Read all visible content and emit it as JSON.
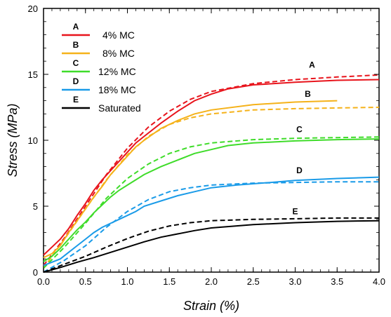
{
  "chart_data": {
    "type": "line",
    "title": "",
    "xlabel": "Strain (%)",
    "ylabel": "Stress (MPa)",
    "xlim": [
      0,
      4
    ],
    "ylim": [
      0,
      20
    ],
    "x_ticks": [
      "0.0",
      "0.5",
      "1.0",
      "1.5",
      "2.0",
      "2.5",
      "3.0",
      "3.5",
      "4.0"
    ],
    "y_ticks": [
      "0",
      "5",
      "10",
      "15",
      "20"
    ],
    "grid": false,
    "legend_position": "top-left",
    "line_style_note": "solid = measured, dashed = model",
    "series": [
      {
        "name": "4% MC",
        "letter": "A",
        "color": "#e8141c",
        "solid": [
          [
            0,
            1.3
          ],
          [
            0.1,
            1.9
          ],
          [
            0.2,
            2.5
          ],
          [
            0.3,
            3.3
          ],
          [
            0.4,
            4.3
          ],
          [
            0.5,
            5.2
          ],
          [
            0.6,
            6.2
          ],
          [
            0.7,
            7.0
          ],
          [
            0.8,
            7.7
          ],
          [
            0.9,
            8.4
          ],
          [
            1.0,
            9.1
          ],
          [
            1.1,
            9.8
          ],
          [
            1.2,
            10.3
          ],
          [
            1.4,
            11.3
          ],
          [
            1.6,
            12.2
          ],
          [
            1.8,
            13.0
          ],
          [
            2.0,
            13.5
          ],
          [
            2.2,
            13.9
          ],
          [
            2.5,
            14.2
          ],
          [
            3.0,
            14.4
          ],
          [
            3.5,
            14.55
          ],
          [
            4.0,
            14.6
          ]
        ],
        "dashed": [
          [
            0,
            0.5
          ],
          [
            0.25,
            2.6
          ],
          [
            0.5,
            5.0
          ],
          [
            0.75,
            7.4
          ],
          [
            1.0,
            9.4
          ],
          [
            1.25,
            11.0
          ],
          [
            1.5,
            12.2
          ],
          [
            1.75,
            13.1
          ],
          [
            2.0,
            13.7
          ],
          [
            2.5,
            14.3
          ],
          [
            3.0,
            14.6
          ],
          [
            3.5,
            14.8
          ],
          [
            4.0,
            14.95
          ]
        ]
      },
      {
        "name": "8% MC",
        "letter": "B",
        "color": "#f5b21a",
        "solid": [
          [
            0,
            1.1
          ],
          [
            0.1,
            1.4
          ],
          [
            0.2,
            2.0
          ],
          [
            0.3,
            3.0
          ],
          [
            0.4,
            3.9
          ],
          [
            0.5,
            4.8
          ],
          [
            0.6,
            5.7
          ],
          [
            0.7,
            6.5
          ],
          [
            0.8,
            7.4
          ],
          [
            0.9,
            8.1
          ],
          [
            1.0,
            8.8
          ],
          [
            1.1,
            9.5
          ],
          [
            1.2,
            10.0
          ],
          [
            1.4,
            10.9
          ],
          [
            1.6,
            11.5
          ],
          [
            1.8,
            12.0
          ],
          [
            2.0,
            12.3
          ],
          [
            2.5,
            12.7
          ],
          [
            3.0,
            12.9
          ],
          [
            3.5,
            13.0
          ]
        ],
        "dashed": [
          [
            0,
            0.3
          ],
          [
            0.25,
            2.5
          ],
          [
            0.5,
            4.8
          ],
          [
            0.75,
            7.0
          ],
          [
            1.0,
            8.9
          ],
          [
            1.25,
            10.3
          ],
          [
            1.5,
            11.2
          ],
          [
            1.75,
            11.7
          ],
          [
            2.0,
            12.0
          ],
          [
            2.5,
            12.3
          ],
          [
            3.0,
            12.4
          ],
          [
            3.5,
            12.45
          ],
          [
            4.0,
            12.5
          ]
        ]
      },
      {
        "name": "12% MC",
        "letter": "C",
        "color": "#3fdc2a",
        "solid": [
          [
            0,
            0.8
          ],
          [
            0.1,
            1.2
          ],
          [
            0.2,
            1.8
          ],
          [
            0.3,
            2.5
          ],
          [
            0.4,
            3.2
          ],
          [
            0.5,
            3.8
          ],
          [
            0.6,
            4.5
          ],
          [
            0.7,
            5.1
          ],
          [
            0.8,
            5.7
          ],
          [
            0.9,
            6.2
          ],
          [
            1.0,
            6.6
          ],
          [
            1.1,
            7.0
          ],
          [
            1.2,
            7.4
          ],
          [
            1.4,
            8.0
          ],
          [
            1.6,
            8.5
          ],
          [
            1.8,
            9.0
          ],
          [
            2.0,
            9.3
          ],
          [
            2.2,
            9.6
          ],
          [
            2.5,
            9.8
          ],
          [
            3.0,
            9.95
          ],
          [
            3.5,
            10.05
          ],
          [
            4.0,
            10.1
          ]
        ],
        "dashed": [
          [
            0,
            0.3
          ],
          [
            0.25,
            1.9
          ],
          [
            0.5,
            3.7
          ],
          [
            0.75,
            5.6
          ],
          [
            1.0,
            7.1
          ],
          [
            1.25,
            8.2
          ],
          [
            1.5,
            9.0
          ],
          [
            1.75,
            9.5
          ],
          [
            2.0,
            9.8
          ],
          [
            2.5,
            10.05
          ],
          [
            3.0,
            10.15
          ],
          [
            3.5,
            10.2
          ],
          [
            4.0,
            10.25
          ]
        ]
      },
      {
        "name": "18% MC",
        "letter": "D",
        "color": "#1a9be8",
        "solid": [
          [
            0,
            0.5
          ],
          [
            0.2,
            1.0
          ],
          [
            0.3,
            1.5
          ],
          [
            0.4,
            2.0
          ],
          [
            0.5,
            2.5
          ],
          [
            0.6,
            3.0
          ],
          [
            0.7,
            3.4
          ],
          [
            0.8,
            3.7
          ],
          [
            0.9,
            4.0
          ],
          [
            1.0,
            4.3
          ],
          [
            1.1,
            4.6
          ],
          [
            1.2,
            5.0
          ],
          [
            1.4,
            5.4
          ],
          [
            1.6,
            5.8
          ],
          [
            1.8,
            6.1
          ],
          [
            2.0,
            6.4
          ],
          [
            2.3,
            6.6
          ],
          [
            2.7,
            6.8
          ],
          [
            3.0,
            6.95
          ],
          [
            3.5,
            7.1
          ],
          [
            4.0,
            7.2
          ]
        ],
        "dashed": [
          [
            0,
            0.0
          ],
          [
            0.25,
            0.9
          ],
          [
            0.5,
            2.0
          ],
          [
            0.75,
            3.4
          ],
          [
            1.0,
            4.6
          ],
          [
            1.25,
            5.5
          ],
          [
            1.5,
            6.1
          ],
          [
            1.75,
            6.4
          ],
          [
            2.0,
            6.6
          ],
          [
            2.5,
            6.75
          ],
          [
            3.0,
            6.8
          ],
          [
            3.5,
            6.85
          ],
          [
            4.0,
            6.85
          ]
        ]
      },
      {
        "name": "Saturated",
        "letter": "E",
        "color": "#000000",
        "solid": [
          [
            0,
            0.0
          ],
          [
            0.2,
            0.35
          ],
          [
            0.4,
            0.75
          ],
          [
            0.6,
            1.1
          ],
          [
            0.8,
            1.5
          ],
          [
            1.0,
            1.9
          ],
          [
            1.2,
            2.3
          ],
          [
            1.4,
            2.65
          ],
          [
            1.6,
            2.9
          ],
          [
            1.8,
            3.15
          ],
          [
            2.0,
            3.35
          ],
          [
            2.5,
            3.6
          ],
          [
            3.0,
            3.75
          ],
          [
            3.5,
            3.85
          ],
          [
            4.0,
            3.9
          ]
        ],
        "dashed": [
          [
            0,
            0.0
          ],
          [
            0.25,
            0.6
          ],
          [
            0.5,
            1.2
          ],
          [
            0.75,
            1.9
          ],
          [
            1.0,
            2.55
          ],
          [
            1.25,
            3.1
          ],
          [
            1.5,
            3.5
          ],
          [
            1.75,
            3.75
          ],
          [
            2.0,
            3.9
          ],
          [
            2.5,
            4.0
          ],
          [
            3.0,
            4.05
          ],
          [
            3.5,
            4.1
          ],
          [
            4.0,
            4.1
          ]
        ]
      }
    ]
  }
}
